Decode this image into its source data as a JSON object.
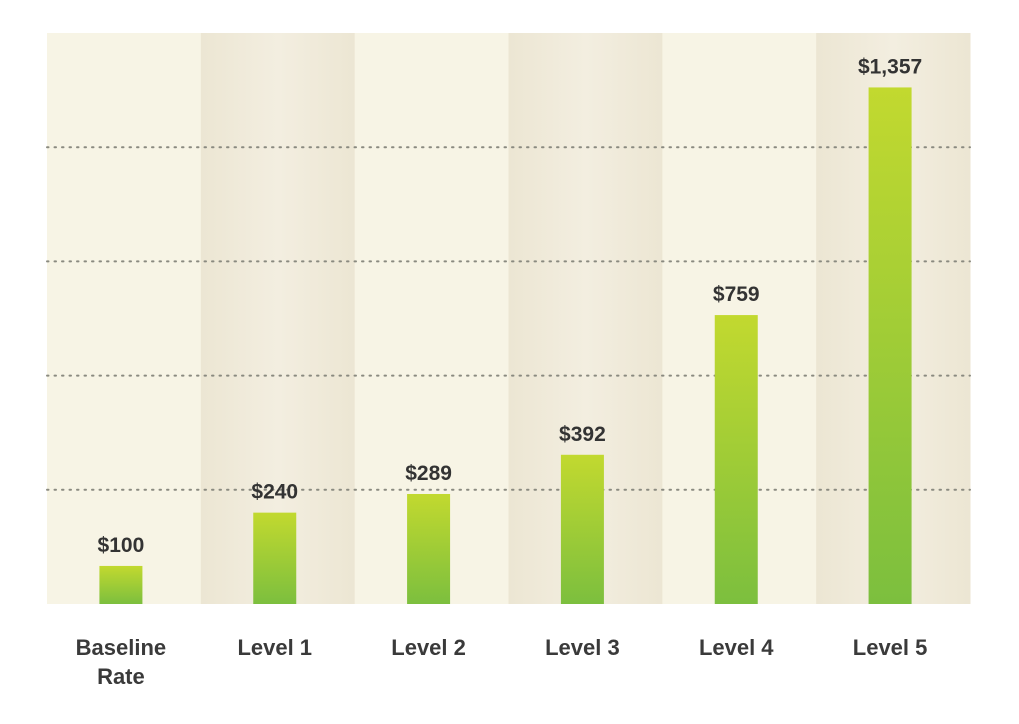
{
  "chart_data": {
    "type": "bar",
    "title": "",
    "xlabel": "",
    "ylabel": "",
    "categories": [
      [
        "Baseline",
        "Rate"
      ],
      [
        "Level 1"
      ],
      [
        "Level 2"
      ],
      [
        "Level 3"
      ],
      [
        "Level 4"
      ],
      [
        "Level 5"
      ]
    ],
    "values": [
      100,
      240,
      289,
      392,
      759,
      1357
    ],
    "value_labels": [
      "$100",
      "$240",
      "$289",
      "$392",
      "$759",
      "$1,357"
    ],
    "ylim": [
      0,
      1500
    ],
    "gridlines": [
      300,
      600,
      900,
      1200
    ],
    "grid": true,
    "legend": "none",
    "colors": {
      "bar_top": "#c2d92f",
      "bar_bottom": "#7cbf3e",
      "band_light": "#f7f4e5",
      "band_dark_edge": "#ece6d3",
      "band_dark_center": "#f3eee0",
      "grid": "#8a8a80",
      "text": "#333333"
    }
  }
}
